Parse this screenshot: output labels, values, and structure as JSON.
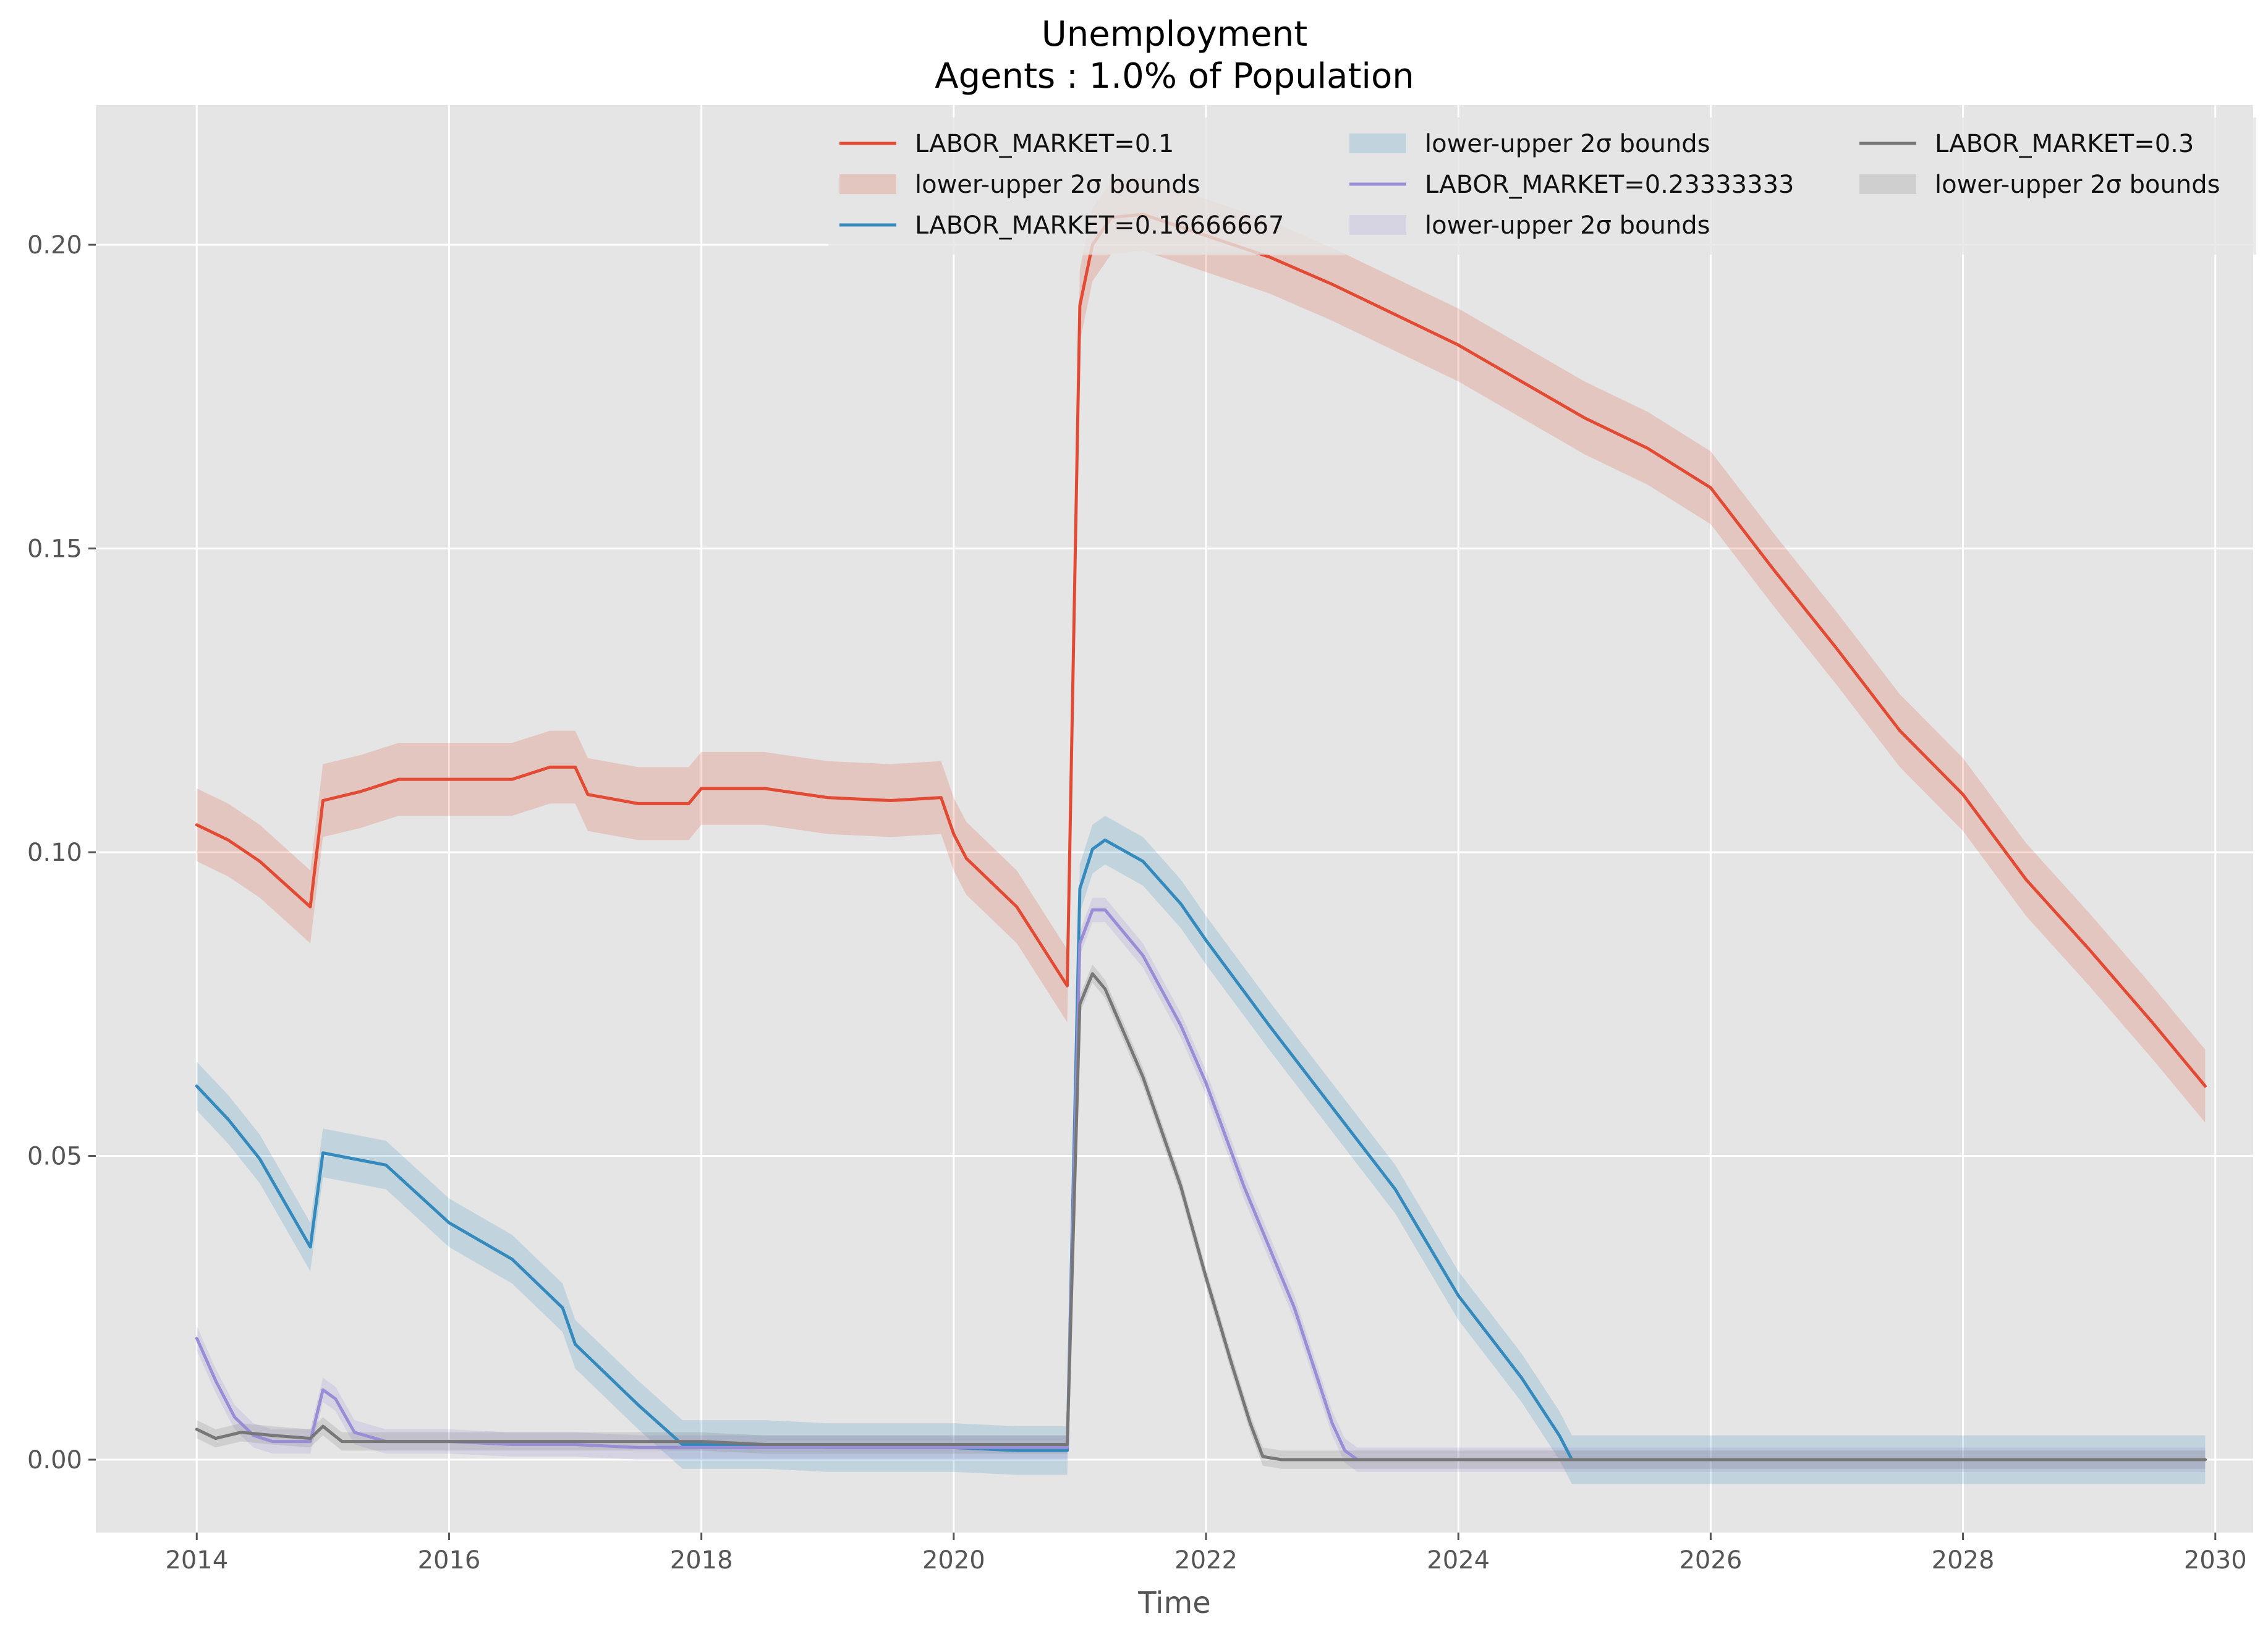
{
  "chart_data": {
    "type": "line",
    "title": "Unemployment",
    "subtitle": "Agents : 1.0% of Population",
    "xlabel": "Time",
    "ylabel": "",
    "xlim": [
      2013.2,
      2030.3
    ],
    "ylim": [
      -0.012,
      0.223
    ],
    "x_ticks": [
      2014,
      2016,
      2018,
      2020,
      2022,
      2024,
      2026,
      2028,
      2030
    ],
    "x_tick_labels": [
      "2014",
      "2016",
      "2018",
      "2020",
      "2022",
      "2024",
      "2026",
      "2028",
      "2030"
    ],
    "y_ticks": [
      0.0,
      0.05,
      0.1,
      0.15,
      0.2
    ],
    "y_tick_labels": [
      "0.00",
      "0.05",
      "0.10",
      "0.15",
      "0.20"
    ],
    "grid": true,
    "legend_position": "top-right",
    "legend_columns": 3,
    "legend": [
      {
        "label": "LABOR_MARKET=0.1",
        "kind": "line",
        "color": "#E24A33"
      },
      {
        "label": "lower-upper 2σ bounds",
        "kind": "band",
        "color": "#E24A33"
      },
      {
        "label": "LABOR_MARKET=0.16666667",
        "kind": "line",
        "color": "#348ABD"
      },
      {
        "label": "lower-upper 2σ bounds",
        "kind": "band",
        "color": "#348ABD"
      },
      {
        "label": "LABOR_MARKET=0.23333333",
        "kind": "line",
        "color": "#988ED5"
      },
      {
        "label": "lower-upper 2σ bounds",
        "kind": "band",
        "color": "#988ED5"
      },
      {
        "label": "LABOR_MARKET=0.3",
        "kind": "line",
        "color": "#777777"
      },
      {
        "label": "lower-upper 2σ bounds",
        "kind": "band",
        "color": "#777777"
      }
    ],
    "series": [
      {
        "name": "LABOR_MARKET=0.1",
        "color": "#E24A33",
        "band_width": 0.006,
        "points": [
          [
            2014.0,
            0.1045
          ],
          [
            2014.25,
            0.102
          ],
          [
            2014.5,
            0.0985
          ],
          [
            2014.9,
            0.091
          ],
          [
            2015.0,
            0.1085
          ],
          [
            2015.3,
            0.11
          ],
          [
            2015.6,
            0.112
          ],
          [
            2016.0,
            0.112
          ],
          [
            2016.5,
            0.112
          ],
          [
            2016.8,
            0.114
          ],
          [
            2017.0,
            0.114
          ],
          [
            2017.1,
            0.1095
          ],
          [
            2017.5,
            0.108
          ],
          [
            2017.9,
            0.108
          ],
          [
            2018.0,
            0.1105
          ],
          [
            2018.5,
            0.1105
          ],
          [
            2019.0,
            0.109
          ],
          [
            2019.5,
            0.1085
          ],
          [
            2019.9,
            0.109
          ],
          [
            2020.0,
            0.103
          ],
          [
            2020.1,
            0.099
          ],
          [
            2020.5,
            0.091
          ],
          [
            2020.9,
            0.078
          ],
          [
            2021.0,
            0.19
          ],
          [
            2021.1,
            0.2
          ],
          [
            2021.25,
            0.2045
          ],
          [
            2021.5,
            0.205
          ],
          [
            2022.0,
            0.2015
          ],
          [
            2022.5,
            0.198
          ],
          [
            2023.0,
            0.1935
          ],
          [
            2023.5,
            0.1885
          ],
          [
            2024.0,
            0.1835
          ],
          [
            2024.5,
            0.1775
          ],
          [
            2025.0,
            0.1715
          ],
          [
            2025.5,
            0.1665
          ],
          [
            2026.0,
            0.16
          ],
          [
            2026.5,
            0.1465
          ],
          [
            2027.0,
            0.1335
          ],
          [
            2027.5,
            0.12
          ],
          [
            2028.0,
            0.1095
          ],
          [
            2028.5,
            0.0955
          ],
          [
            2029.0,
            0.084
          ],
          [
            2029.5,
            0.072
          ],
          [
            2029.92,
            0.0615
          ]
        ]
      },
      {
        "name": "LABOR_MARKET=0.16666667",
        "color": "#348ABD",
        "band_width": 0.004,
        "points": [
          [
            2014.0,
            0.0615
          ],
          [
            2014.25,
            0.056
          ],
          [
            2014.5,
            0.0495
          ],
          [
            2014.9,
            0.035
          ],
          [
            2015.0,
            0.0505
          ],
          [
            2015.25,
            0.0495
          ],
          [
            2015.5,
            0.0485
          ],
          [
            2016.0,
            0.039
          ],
          [
            2016.5,
            0.033
          ],
          [
            2016.9,
            0.025
          ],
          [
            2017.0,
            0.019
          ],
          [
            2017.5,
            0.009
          ],
          [
            2017.85,
            0.0025
          ],
          [
            2018.0,
            0.0025
          ],
          [
            2018.5,
            0.0025
          ],
          [
            2019.0,
            0.002
          ],
          [
            2019.5,
            0.002
          ],
          [
            2020.0,
            0.002
          ],
          [
            2020.5,
            0.0015
          ],
          [
            2020.9,
            0.0015
          ],
          [
            2021.0,
            0.094
          ],
          [
            2021.1,
            0.1005
          ],
          [
            2021.2,
            0.102
          ],
          [
            2021.5,
            0.0985
          ],
          [
            2021.8,
            0.0915
          ],
          [
            2022.0,
            0.0855
          ],
          [
            2022.5,
            0.0715
          ],
          [
            2023.0,
            0.058
          ],
          [
            2023.5,
            0.0445
          ],
          [
            2024.0,
            0.027
          ],
          [
            2024.5,
            0.0135
          ],
          [
            2024.8,
            0.004
          ],
          [
            2024.9,
            0.0
          ],
          [
            2025.5,
            0.0
          ],
          [
            2026.5,
            0.0
          ],
          [
            2027.5,
            0.0
          ],
          [
            2028.5,
            0.0
          ],
          [
            2029.92,
            0.0
          ]
        ]
      },
      {
        "name": "LABOR_MARKET=0.23333333",
        "color": "#988ED5",
        "band_width": 0.002,
        "points": [
          [
            2014.0,
            0.02
          ],
          [
            2014.15,
            0.013
          ],
          [
            2014.3,
            0.007
          ],
          [
            2014.45,
            0.004
          ],
          [
            2014.6,
            0.003
          ],
          [
            2014.9,
            0.003
          ],
          [
            2015.0,
            0.0115
          ],
          [
            2015.1,
            0.01
          ],
          [
            2015.25,
            0.0045
          ],
          [
            2015.5,
            0.003
          ],
          [
            2016.0,
            0.003
          ],
          [
            2016.5,
            0.0025
          ],
          [
            2017.0,
            0.0025
          ],
          [
            2017.5,
            0.002
          ],
          [
            2018.0,
            0.002
          ],
          [
            2019.0,
            0.002
          ],
          [
            2020.0,
            0.002
          ],
          [
            2020.9,
            0.002
          ],
          [
            2021.0,
            0.085
          ],
          [
            2021.1,
            0.0905
          ],
          [
            2021.2,
            0.0905
          ],
          [
            2021.5,
            0.083
          ],
          [
            2021.8,
            0.0715
          ],
          [
            2022.0,
            0.062
          ],
          [
            2022.3,
            0.045
          ],
          [
            2022.7,
            0.025
          ],
          [
            2023.0,
            0.006
          ],
          [
            2023.1,
            0.0015
          ],
          [
            2023.2,
            0.0
          ],
          [
            2024.0,
            0.0
          ],
          [
            2025.0,
            0.0
          ],
          [
            2026.0,
            0.0
          ],
          [
            2027.0,
            0.0
          ],
          [
            2028.0,
            0.0
          ],
          [
            2029.0,
            0.0
          ],
          [
            2029.92,
            0.0
          ]
        ]
      },
      {
        "name": "LABOR_MARKET=0.3",
        "color": "#777777",
        "band_width": 0.0015,
        "points": [
          [
            2014.0,
            0.005
          ],
          [
            2014.15,
            0.0035
          ],
          [
            2014.35,
            0.0045
          ],
          [
            2014.6,
            0.004
          ],
          [
            2014.9,
            0.0035
          ],
          [
            2015.0,
            0.0055
          ],
          [
            2015.15,
            0.003
          ],
          [
            2015.5,
            0.003
          ],
          [
            2016.0,
            0.003
          ],
          [
            2016.5,
            0.003
          ],
          [
            2017.0,
            0.003
          ],
          [
            2017.5,
            0.003
          ],
          [
            2018.0,
            0.003
          ],
          [
            2018.5,
            0.0025
          ],
          [
            2019.0,
            0.0025
          ],
          [
            2019.5,
            0.0025
          ],
          [
            2020.0,
            0.0025
          ],
          [
            2020.5,
            0.0025
          ],
          [
            2020.9,
            0.0025
          ],
          [
            2021.0,
            0.075
          ],
          [
            2021.1,
            0.08
          ],
          [
            2021.2,
            0.0775
          ],
          [
            2021.5,
            0.063
          ],
          [
            2021.8,
            0.045
          ],
          [
            2022.0,
            0.03
          ],
          [
            2022.2,
            0.016
          ],
          [
            2022.35,
            0.006
          ],
          [
            2022.45,
            0.0005
          ],
          [
            2022.6,
            0.0
          ],
          [
            2023.5,
            0.0
          ],
          [
            2024.5,
            0.0
          ],
          [
            2025.5,
            0.0
          ],
          [
            2026.5,
            0.0
          ],
          [
            2027.5,
            0.0
          ],
          [
            2028.5,
            0.0
          ],
          [
            2029.92,
            0.0
          ]
        ]
      }
    ]
  }
}
